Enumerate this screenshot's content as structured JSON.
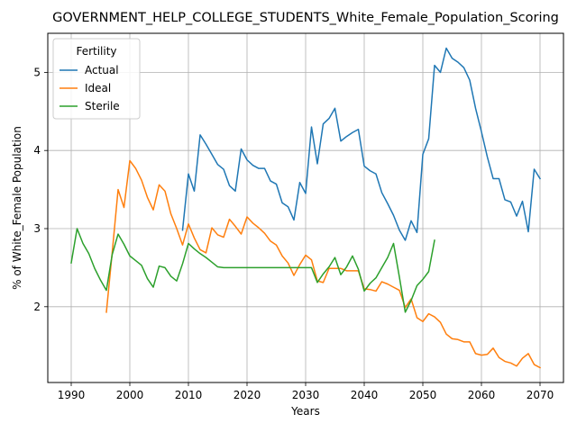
{
  "chart_data": {
    "type": "line",
    "title": "GOVERNMENT_HELP_COLLEGE_STUDENTS_White_Female_Population_Scoring",
    "xlabel": "Years",
    "ylabel": "% of White_Female Population",
    "xlim": [
      1986,
      2074
    ],
    "ylim": [
      1.03,
      5.5
    ],
    "xticks": [
      1990,
      2000,
      2010,
      2020,
      2030,
      2040,
      2050,
      2060,
      2070
    ],
    "yticks": [
      2,
      3,
      4,
      5
    ],
    "grid": true,
    "legend": {
      "title": "Fertility",
      "position": "top-left"
    },
    "series": [
      {
        "name": "Actual",
        "color": "#1f77b4",
        "x": [
          2009,
          2010,
          2011,
          2012,
          2013,
          2014,
          2015,
          2016,
          2017,
          2018,
          2019,
          2020,
          2021,
          2022,
          2023,
          2024,
          2025,
          2026,
          2027,
          2028,
          2029,
          2030,
          2031,
          2032,
          2033,
          2034,
          2035,
          2036,
          2037,
          2038,
          2039,
          2040,
          2041,
          2042,
          2043,
          2044,
          2045,
          2046,
          2047,
          2048,
          2049,
          2050,
          2051,
          2052,
          2053,
          2054,
          2055,
          2056,
          2057,
          2058,
          2059,
          2060,
          2061,
          2062,
          2063,
          2064,
          2065,
          2066,
          2067,
          2068,
          2069,
          2070
        ],
        "y": [
          2.98,
          3.7,
          3.48,
          4.2,
          4.08,
          3.95,
          3.82,
          3.76,
          3.55,
          3.48,
          4.02,
          3.88,
          3.81,
          3.77,
          3.77,
          3.61,
          3.57,
          3.33,
          3.28,
          3.11,
          3.59,
          3.45,
          4.3,
          3.83,
          4.34,
          4.41,
          4.54,
          4.12,
          4.18,
          4.23,
          4.27,
          3.8,
          3.74,
          3.7,
          3.46,
          3.32,
          3.17,
          2.98,
          2.85,
          3.1,
          2.95,
          3.95,
          4.15,
          5.09,
          5.0,
          5.31,
          5.18,
          5.13,
          5.06,
          4.9,
          4.54,
          4.24,
          3.92,
          3.64,
          3.64,
          3.37,
          3.34,
          3.16,
          3.35,
          2.96,
          3.76,
          3.64
        ]
      },
      {
        "name": "Ideal",
        "color": "#ff7f0e",
        "x": [
          1996,
          1997,
          1998,
          1999,
          2000,
          2001,
          2002,
          2003,
          2004,
          2005,
          2006,
          2007,
          2008,
          2009,
          2010,
          2011,
          2012,
          2013,
          2014,
          2015,
          2016,
          2017,
          2018,
          2019,
          2020,
          2021,
          2022,
          2023,
          2024,
          2025,
          2026,
          2027,
          2028,
          2029,
          2030,
          2031,
          2032,
          2033,
          2034,
          2035,
          2036,
          2037,
          2038,
          2039,
          2040,
          2041,
          2042,
          2043,
          2044,
          2045,
          2046,
          2047,
          2048,
          2049,
          2050,
          2051,
          2052,
          2053,
          2054,
          2055,
          2056,
          2057,
          2058,
          2059,
          2060,
          2061,
          2062,
          2063,
          2064,
          2065,
          2066,
          2067,
          2068,
          2069,
          2070
        ],
        "y": [
          1.93,
          2.7,
          3.5,
          3.27,
          3.87,
          3.77,
          3.62,
          3.4,
          3.24,
          3.56,
          3.48,
          3.19,
          3.0,
          2.79,
          3.06,
          2.88,
          2.73,
          2.69,
          3.01,
          2.92,
          2.89,
          3.12,
          3.03,
          2.93,
          3.15,
          3.07,
          3.01,
          2.94,
          2.84,
          2.79,
          2.65,
          2.56,
          2.4,
          2.54,
          2.66,
          2.6,
          2.33,
          2.31,
          2.49,
          2.49,
          2.49,
          2.46,
          2.46,
          2.46,
          2.23,
          2.22,
          2.2,
          2.32,
          2.29,
          2.25,
          2.21,
          1.99,
          2.1,
          1.86,
          1.81,
          1.91,
          1.87,
          1.8,
          1.65,
          1.59,
          1.58,
          1.55,
          1.55,
          1.4,
          1.38,
          1.39,
          1.47,
          1.35,
          1.3,
          1.28,
          1.24,
          1.34,
          1.4,
          1.26,
          1.22
        ]
      },
      {
        "name": "Sterile",
        "color": "#2ca02c",
        "x": [
          1990,
          1991,
          1992,
          1993,
          1994,
          1995,
          1996,
          1997,
          1998,
          1999,
          2000,
          2001,
          2002,
          2003,
          2004,
          2005,
          2006,
          2007,
          2008,
          2009,
          2010,
          2011,
          2012,
          2013,
          2014,
          2015,
          2016,
          2017,
          2018,
          2019,
          2020,
          2021,
          2022,
          2023,
          2024,
          2025,
          2026,
          2027,
          2028,
          2029,
          2030,
          2031,
          2032,
          2033,
          2034,
          2035,
          2036,
          2037,
          2038,
          2039,
          2040,
          2041,
          2042,
          2043,
          2044,
          2045,
          2046,
          2047,
          2048,
          2049,
          2050,
          2051,
          2052
        ],
        "y": [
          2.56,
          3.0,
          2.81,
          2.68,
          2.49,
          2.34,
          2.21,
          2.67,
          2.93,
          2.8,
          2.65,
          2.59,
          2.53,
          2.36,
          2.25,
          2.52,
          2.5,
          2.39,
          2.33,
          2.55,
          2.81,
          2.74,
          2.68,
          2.63,
          2.57,
          2.51,
          2.5,
          2.5,
          2.5,
          2.5,
          2.5,
          2.5,
          2.5,
          2.5,
          2.5,
          2.5,
          2.5,
          2.5,
          2.5,
          2.5,
          2.5,
          2.5,
          2.31,
          2.42,
          2.51,
          2.63,
          2.41,
          2.51,
          2.65,
          2.48,
          2.2,
          2.3,
          2.37,
          2.5,
          2.63,
          2.81,
          2.38,
          1.93,
          2.08,
          2.27,
          2.35,
          2.45,
          2.85
        ]
      }
    ]
  }
}
